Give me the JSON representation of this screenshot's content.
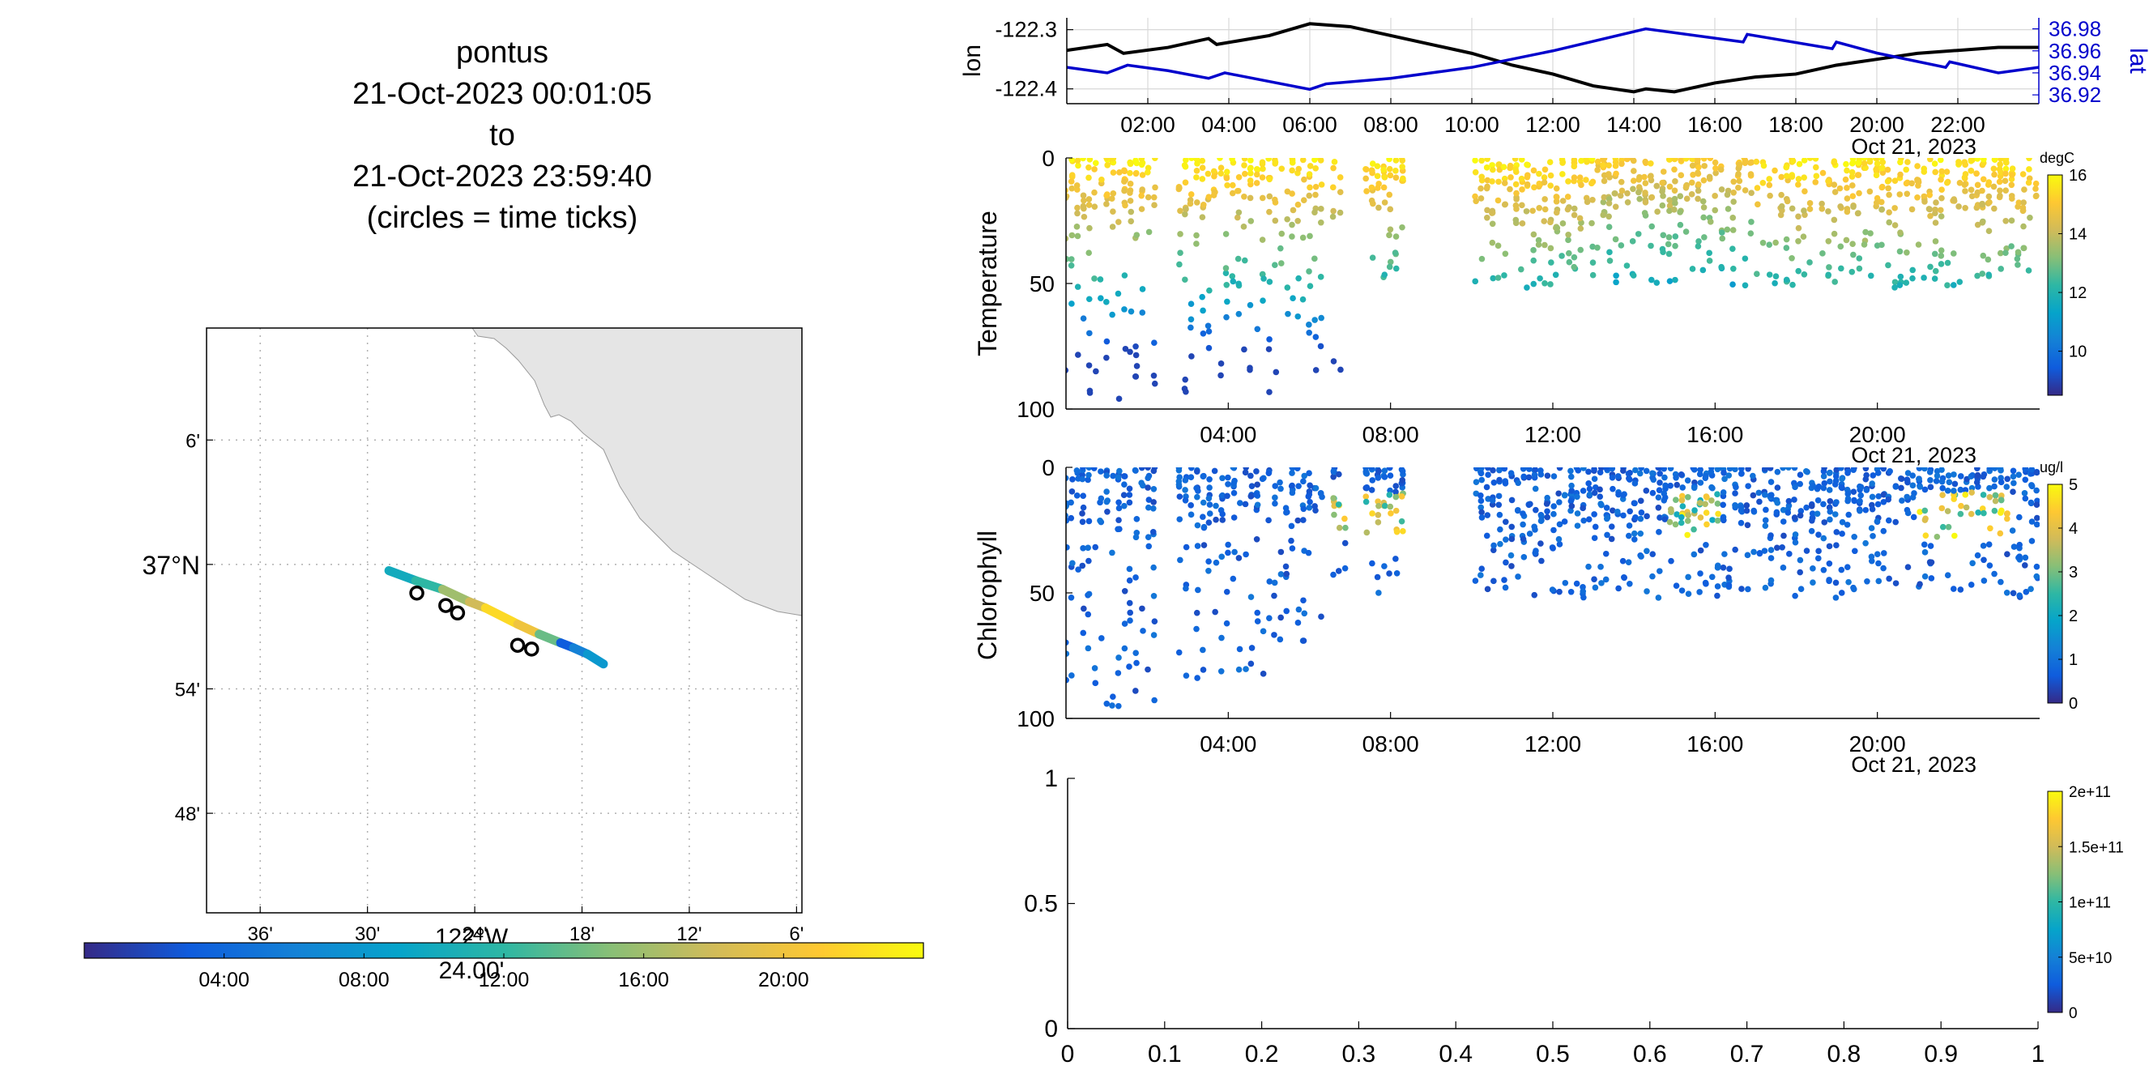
{
  "figure": {
    "title_lines": [
      "pontus",
      "21-Oct-2023 00:01:05",
      "to",
      "21-Oct-2023 23:59:40",
      "(circles = time ticks)"
    ]
  },
  "colors": {
    "lon_line": "#000000",
    "lat_line": "#0000cc",
    "land": "#e5e5e5",
    "grid": "#b0b0b0",
    "parula": [
      "#352a87",
      "#0f5cdd",
      "#1481d6",
      "#06a4ca",
      "#2eb7a4",
      "#87bf77",
      "#d1bb59",
      "#fec832",
      "#f9fb0e"
    ]
  },
  "chart_data": [
    {
      "id": "track_map",
      "type": "scatter",
      "description_type": "map",
      "lat_ticks": [
        "6'",
        "37°N",
        "54'",
        "48'"
      ],
      "lat_tick_values": [
        37.1,
        37.0,
        36.9,
        36.8
      ],
      "lon_ticks": [
        "36'",
        "30'",
        "24'",
        "18'",
        "12'",
        "6'"
      ],
      "lon_tick_values": [
        -122.6,
        -122.5,
        -122.4,
        -122.3,
        -122.2,
        -122.1
      ],
      "lon_axis_label_parts": [
        "122°W",
        "24.00'"
      ],
      "xlim": [
        -122.65,
        -122.095
      ],
      "ylim": [
        36.72,
        37.19
      ],
      "track": {
        "x": [
          -122.48,
          -122.455,
          -122.43,
          -122.405,
          -122.39,
          -122.36,
          -122.34,
          -122.32,
          -122.308,
          -122.295,
          -122.28
        ],
        "y": [
          36.995,
          36.987,
          36.98,
          36.97,
          36.965,
          36.952,
          36.944,
          36.937,
          36.933,
          36.928,
          36.92
        ],
        "t": [
          10,
          12,
          16,
          18,
          22,
          20,
          14,
          3,
          6,
          8,
          1
        ]
      },
      "tick_circles": {
        "x": [
          -122.454,
          -122.427,
          -122.416,
          -122.36,
          -122.347
        ],
        "y": [
          36.977,
          36.967,
          36.961,
          36.935,
          36.932
        ]
      }
    },
    {
      "id": "time_colorbar",
      "type": "heatmap",
      "tick_labels": [
        "04:00",
        "08:00",
        "12:00",
        "16:00",
        "20:00"
      ],
      "tick_values": [
        4,
        8,
        12,
        16,
        20
      ],
      "range": [
        0,
        24
      ]
    },
    {
      "id": "lon_lat",
      "type": "line",
      "left_ylabel": "lon",
      "right_ylabel": "lat",
      "xlim": [
        0,
        24
      ],
      "x_tick_labels": [
        "02:00",
        "04:00",
        "06:00",
        "08:00",
        "10:00",
        "12:00",
        "14:00",
        "16:00",
        "18:00",
        "20:00",
        "22:00"
      ],
      "x_tick_values": [
        2,
        4,
        6,
        8,
        10,
        12,
        14,
        16,
        18,
        20,
        22
      ],
      "date_label": "Oct 21, 2023",
      "left_ylim": [
        -122.425,
        -122.28
      ],
      "left_ticks": [
        "-122.3",
        "-122.4"
      ],
      "left_tick_values": [
        -122.3,
        -122.4
      ],
      "right_ylim": [
        36.912,
        36.99
      ],
      "right_ticks": [
        "36.98",
        "36.96",
        "36.94",
        "36.92"
      ],
      "right_tick_values": [
        36.98,
        36.96,
        36.94,
        36.92
      ],
      "series": [
        {
          "name": "lon",
          "x": [
            0,
            1,
            1.4,
            2.5,
            3.5,
            3.7,
            5,
            6,
            7,
            8,
            9,
            10,
            11,
            12,
            13,
            14,
            14.3,
            15,
            16,
            17,
            18,
            19,
            20,
            21,
            22,
            23,
            24
          ],
          "y": [
            -122.335,
            -122.325,
            -122.34,
            -122.33,
            -122.315,
            -122.325,
            -122.31,
            -122.29,
            -122.295,
            -122.31,
            -122.325,
            -122.34,
            -122.36,
            -122.375,
            -122.395,
            -122.405,
            -122.4,
            -122.405,
            -122.39,
            -122.38,
            -122.375,
            -122.36,
            -122.35,
            -122.34,
            -122.335,
            -122.33,
            -122.33
          ]
        },
        {
          "name": "lat",
          "x": [
            0,
            1,
            1.5,
            2.5,
            3.5,
            3.9,
            6,
            6.4,
            8,
            10,
            12,
            14.3,
            16.7,
            16.8,
            18.9,
            19.0,
            20,
            21.7,
            21.8,
            23,
            24
          ],
          "y": [
            36.945,
            36.94,
            36.947,
            36.942,
            36.935,
            36.94,
            36.925,
            36.93,
            36.935,
            36.945,
            36.96,
            36.98,
            36.968,
            36.975,
            36.962,
            36.968,
            36.958,
            36.945,
            36.95,
            36.94,
            36.945
          ]
        }
      ]
    },
    {
      "id": "temperature",
      "type": "scatter",
      "ylabel": "Temperature",
      "xlim": [
        0,
        24
      ],
      "ylim": [
        100,
        0
      ],
      "x_tick_labels": [
        "04:00",
        "08:00",
        "12:00",
        "16:00",
        "20:00"
      ],
      "x_tick_values": [
        4,
        8,
        12,
        16,
        20
      ],
      "date_label": "Oct 21, 2023",
      "y_ticks": [
        "0",
        "50",
        "100"
      ],
      "y_tick_values": [
        0,
        50,
        100
      ],
      "colorbar": {
        "label": "degC",
        "ticks": [
          "16",
          "14",
          "12",
          "10"
        ],
        "tick_values": [
          16,
          14,
          12,
          10
        ],
        "range": [
          8.5,
          16
        ]
      },
      "profile_windows": [
        [
          0.0,
          2.3
        ],
        [
          2.8,
          6.3
        ],
        [
          6.6,
          6.9
        ],
        [
          7.4,
          8.3
        ],
        [
          10.1,
          24.0
        ]
      ],
      "depth_limits": [
        [
          0,
          97
        ],
        [
          0,
          97
        ],
        [
          0,
          95
        ],
        [
          0,
          52
        ],
        [
          0,
          52
        ]
      ],
      "profile_spacing_hours": 0.14,
      "value_model": "warm near surface (15-16 degC), cooling with depth to about 12 degC at 50 m and 9.5 degC near 100 m"
    },
    {
      "id": "chlorophyll",
      "type": "scatter",
      "ylabel": "Chlorophyll",
      "xlim": [
        0,
        24
      ],
      "ylim": [
        100,
        0
      ],
      "x_tick_labels": [
        "04:00",
        "08:00",
        "12:00",
        "16:00",
        "20:00"
      ],
      "x_tick_values": [
        4,
        8,
        12,
        16,
        20
      ],
      "date_label": "Oct 21, 2023",
      "y_ticks": [
        "0",
        "50",
        "100"
      ],
      "y_tick_values": [
        0,
        50,
        100
      ],
      "colorbar": {
        "label": "ug/l",
        "ticks": [
          "5",
          "4",
          "3",
          "2",
          "1",
          "0"
        ],
        "tick_values": [
          5,
          4,
          3,
          2,
          1,
          0
        ],
        "range": [
          0,
          5
        ]
      },
      "profile_windows": [
        [
          0.0,
          2.3
        ],
        [
          2.8,
          6.3
        ],
        [
          6.6,
          6.9
        ],
        [
          7.4,
          8.3
        ],
        [
          10.1,
          24.0
        ]
      ],
      "depth_limits": [
        [
          0,
          97
        ],
        [
          0,
          85
        ],
        [
          0,
          52
        ],
        [
          0,
          52
        ],
        [
          0,
          52
        ]
      ],
      "value_model": "mostly 0-1 ug/l, elevated (3-5) at 15-25 m around 07:30-08:00, 15:00-16:00 and 21:00-23:00"
    },
    {
      "id": "empty_panel",
      "type": "scatter",
      "xlim": [
        0,
        1
      ],
      "ylim": [
        0,
        1
      ],
      "x_tick_labels": [
        "0",
        "0.1",
        "0.2",
        "0.3",
        "0.4",
        "0.5",
        "0.6",
        "0.7",
        "0.8",
        "0.9",
        "1"
      ],
      "x_tick_values": [
        0,
        0.1,
        0.2,
        0.3,
        0.4,
        0.5,
        0.6,
        0.7,
        0.8,
        0.9,
        1
      ],
      "y_tick_labels": [
        "0",
        "0.5",
        "1"
      ],
      "y_tick_values": [
        0,
        0.5,
        1
      ],
      "colorbar": {
        "label": "",
        "ticks": [
          "2e+11",
          "1.5e+11",
          "1e+11",
          "5e+10",
          "0"
        ],
        "tick_values": [
          200000000000.0,
          150000000000.0,
          100000000000.0,
          50000000000.0,
          0
        ],
        "range": [
          0,
          200000000000.0
        ]
      }
    }
  ]
}
